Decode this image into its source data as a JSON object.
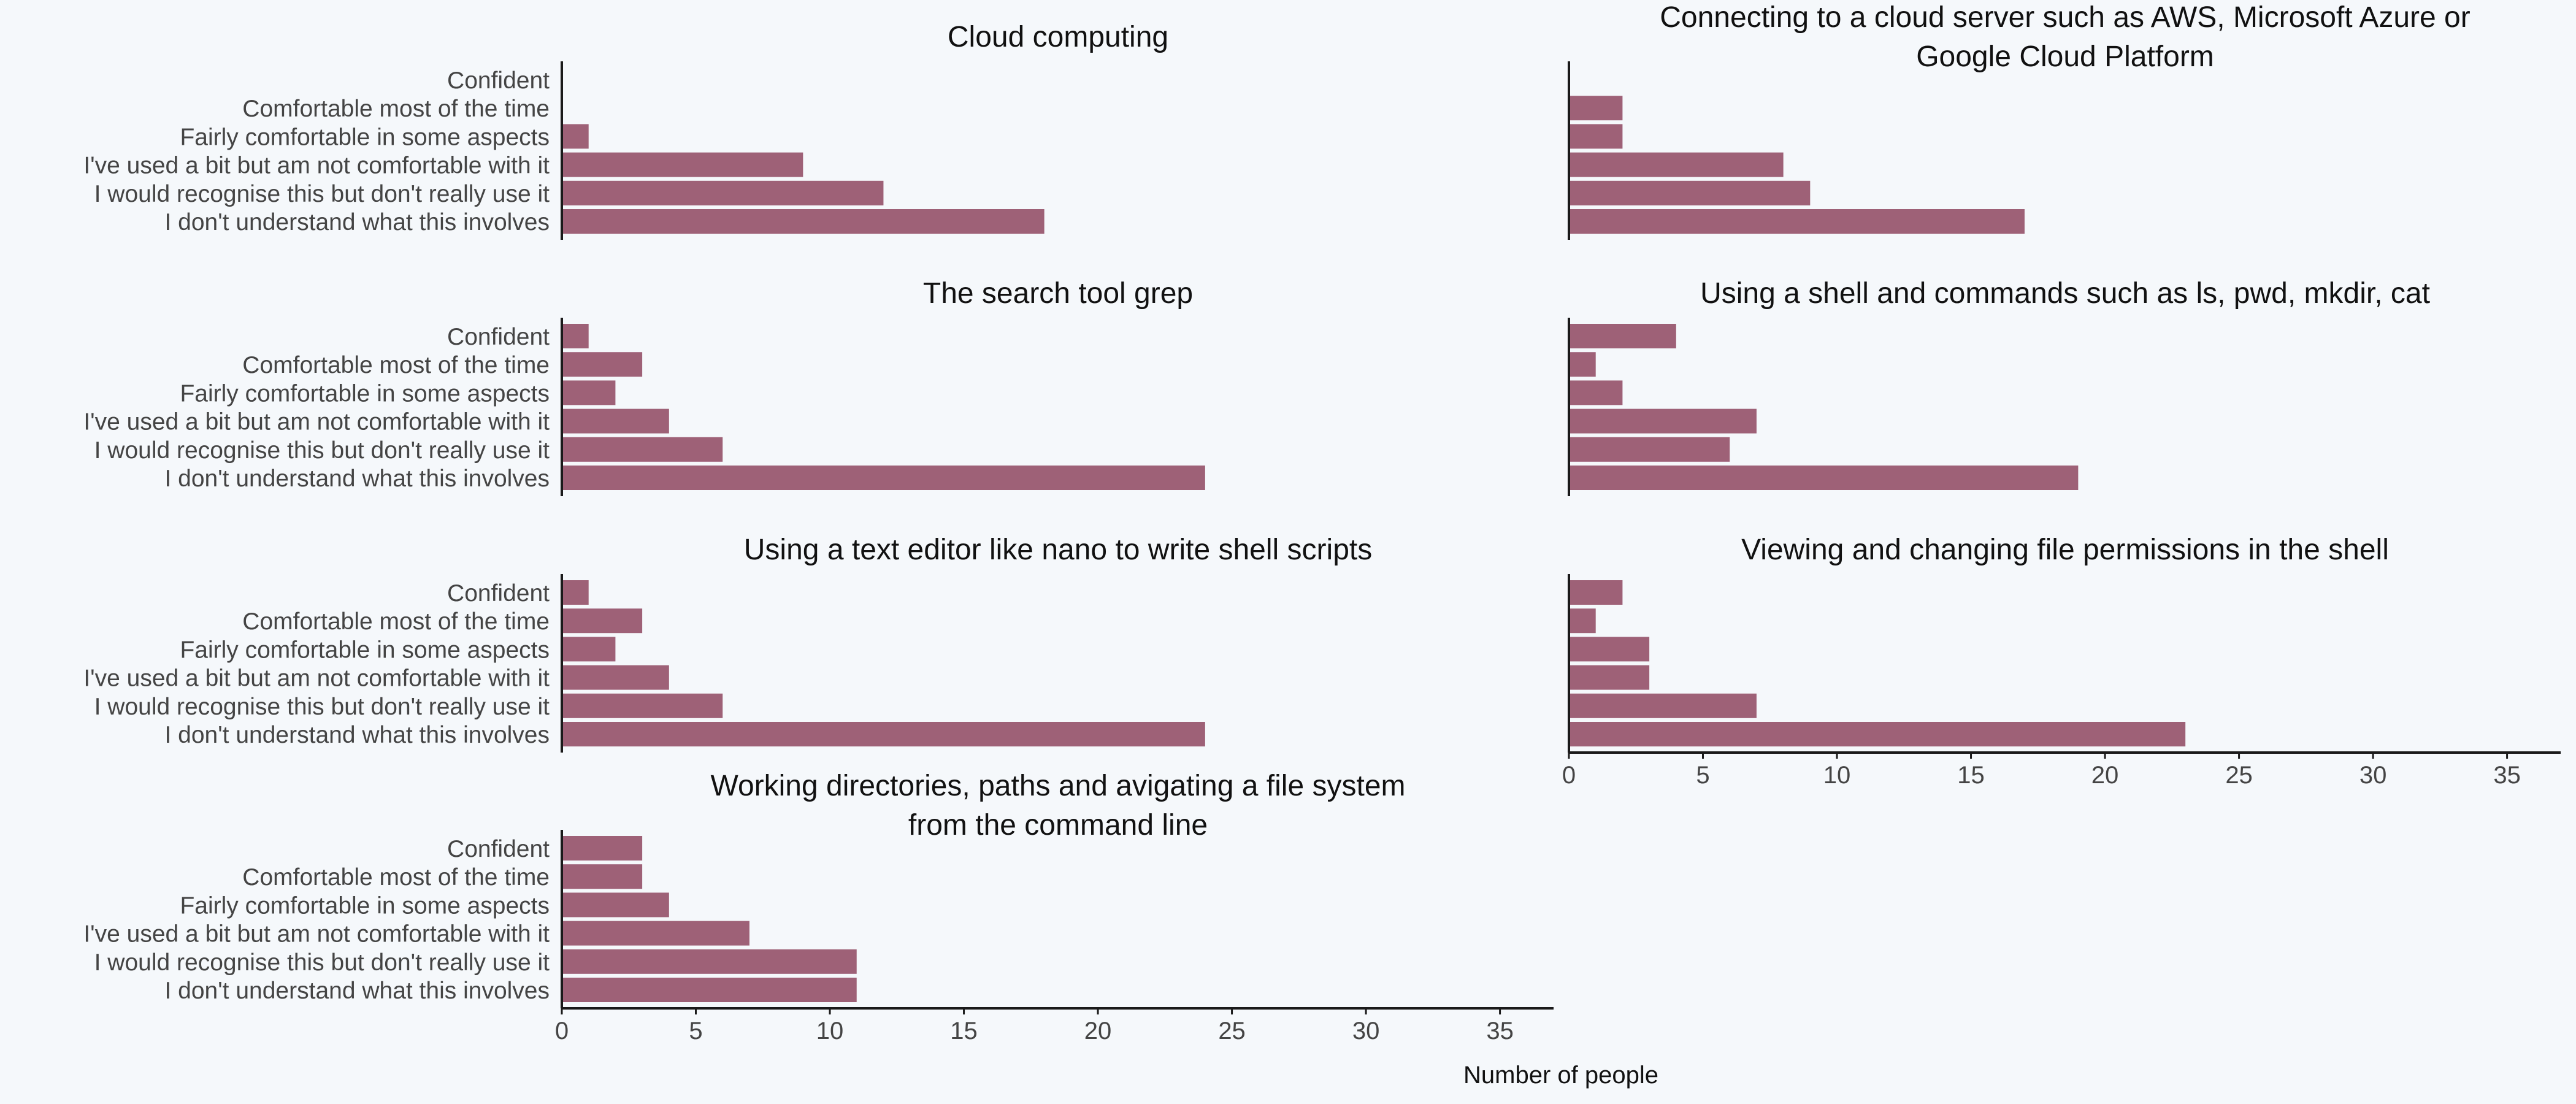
{
  "figure": {
    "xlabel": "Number of people",
    "bar_color": "#9e6177",
    "axis_color": "#1a1a1a",
    "text_color": "#444444",
    "title_color": "#111111",
    "background": "#f5f8fb"
  },
  "chart_data": [
    {
      "type": "bar",
      "orientation": "horizontal",
      "title": "Cloud computing",
      "categories": [
        "Confident",
        "Comfortable most of the time",
        "Fairly comfortable in some aspects",
        "I've used a bit but am not comfortable with it",
        "I would recognise this but don't really use it",
        "I don't understand what this involves"
      ],
      "values": [
        0,
        0,
        1,
        9,
        12,
        18
      ],
      "xlim": [
        0,
        37
      ]
    },
    {
      "type": "bar",
      "orientation": "horizontal",
      "title": "Connecting to a cloud server such as AWS, Microsoft Azure or Google Cloud Platform",
      "categories": [
        "Confident",
        "Comfortable most of the time",
        "Fairly comfortable in some aspects",
        "I've used a bit but am not comfortable with it",
        "I would recognise this but don't really use it",
        "I don't understand what this involves"
      ],
      "values": [
        0,
        2,
        2,
        8,
        9,
        17
      ],
      "xlim": [
        0,
        37
      ]
    },
    {
      "type": "bar",
      "orientation": "horizontal",
      "title": "The search tool grep",
      "categories": [
        "Confident",
        "Comfortable most of the time",
        "Fairly comfortable in some aspects",
        "I've used a bit but am not comfortable with it",
        "I would recognise this but don't really use it",
        "I don't understand what this involves"
      ],
      "values": [
        1,
        3,
        2,
        4,
        6,
        24
      ],
      "xlim": [
        0,
        37
      ]
    },
    {
      "type": "bar",
      "orientation": "horizontal",
      "title": "Using a shell and commands such as ls, pwd, mkdir, cat",
      "categories": [
        "Confident",
        "Comfortable most of the time",
        "Fairly comfortable in some aspects",
        "I've used a bit but am not comfortable with it",
        "I would recognise this but don't really use it",
        "I don't understand what this involves"
      ],
      "values": [
        4,
        1,
        2,
        7,
        6,
        19
      ],
      "xlim": [
        0,
        37
      ]
    },
    {
      "type": "bar",
      "orientation": "horizontal",
      "title": "Using a text editor like nano to write shell scripts",
      "categories": [
        "Confident",
        "Comfortable most of the time",
        "Fairly comfortable in some aspects",
        "I've used a bit but am not comfortable with it",
        "I would recognise this but don't really use it",
        "I don't understand what this involves"
      ],
      "values": [
        1,
        3,
        2,
        4,
        6,
        24
      ],
      "xlim": [
        0,
        37
      ]
    },
    {
      "type": "bar",
      "orientation": "horizontal",
      "title": "Viewing and changing file permissions in the shell",
      "categories": [
        "Confident",
        "Comfortable most of the time",
        "Fairly comfortable in some aspects",
        "I've used a bit but am not comfortable with it",
        "I would recognise this but don't really use it",
        "I don't understand what this involves"
      ],
      "values": [
        2,
        1,
        3,
        3,
        7,
        23
      ],
      "xlim": [
        0,
        37
      ],
      "xticks": [
        0,
        5,
        10,
        15,
        20,
        25,
        30,
        35
      ]
    },
    {
      "type": "bar",
      "orientation": "horizontal",
      "title": "Working directories, paths and avigating a file system from the command line",
      "categories": [
        "Confident",
        "Comfortable most of the time",
        "Fairly comfortable in some aspects",
        "I've used a bit but am not comfortable with it",
        "I would recognise this but don't really use it",
        "I don't understand what this involves"
      ],
      "values": [
        3,
        3,
        4,
        7,
        11,
        11
      ],
      "xlim": [
        0,
        37
      ],
      "xticks": [
        0,
        5,
        10,
        15,
        20,
        25,
        30,
        35
      ]
    }
  ]
}
